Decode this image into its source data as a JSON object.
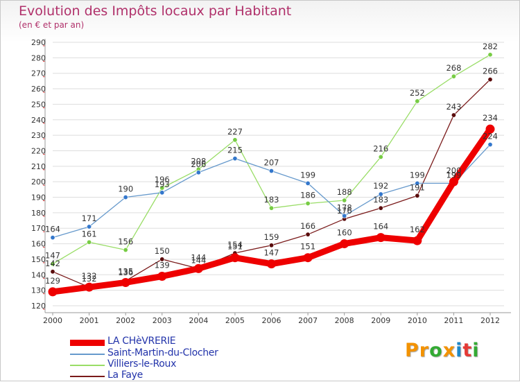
{
  "header": {
    "title": "Evolution des Impôts locaux par Habitant",
    "subtitle": "(en € et par an)"
  },
  "logo": {
    "letters": [
      "P",
      "r",
      "o",
      "x",
      "i",
      "t",
      "i"
    ],
    "colors": [
      "#f39200",
      "#f39200",
      "#33aa33",
      "#f39200",
      "#1e88c8",
      "#e53935",
      "#33aa33"
    ]
  },
  "chart_data": {
    "type": "line",
    "title": "Evolution des Impôts locaux par Habitant",
    "subtitle": "(en € et par an)",
    "xlabel": "",
    "ylabel": "",
    "x": [
      2000,
      2001,
      2002,
      2003,
      2004,
      2005,
      2006,
      2007,
      2008,
      2009,
      2010,
      2011,
      2012
    ],
    "ylim": [
      120,
      290
    ],
    "yticks": [
      120,
      130,
      140,
      150,
      160,
      170,
      180,
      190,
      200,
      210,
      220,
      230,
      240,
      250,
      260,
      270,
      280,
      290
    ],
    "grid": "horizontal",
    "legend_position": "bottom-left",
    "series": [
      {
        "name": "La Faye",
        "color": "#7a1a1a",
        "marker": "#5a0c0c",
        "weight": "thin",
        "values": [
          142,
          132,
          136,
          150,
          144,
          154,
          159,
          166,
          176,
          183,
          191,
          243,
          266
        ]
      },
      {
        "name": "Villiers-le-Roux",
        "color": "#99dd66",
        "marker": "#77cc44",
        "weight": "thin",
        "values": [
          147,
          161,
          156,
          196,
          208,
          227,
          183,
          186,
          188,
          216,
          252,
          268,
          282
        ]
      },
      {
        "name": "Saint-Martin-du-Clocher",
        "color": "#6699cc",
        "marker": "#3377cc",
        "weight": "thin",
        "values": [
          164,
          171,
          190,
          193,
          206,
          215,
          207,
          199,
          178,
          192,
          199,
          199,
          224
        ]
      },
      {
        "name": "LA CHèVRERIE",
        "color": "#ee0000",
        "marker": "#ee0000",
        "weight": "thick",
        "values": [
          129,
          132,
          135,
          139,
          144,
          151,
          147,
          151,
          160,
          164,
          162,
          200,
          234
        ]
      }
    ],
    "legend": [
      "LA CHèVRERIE",
      "Saint-Martin-du-Clocher",
      "Villiers-le-Roux",
      "La Faye"
    ]
  }
}
